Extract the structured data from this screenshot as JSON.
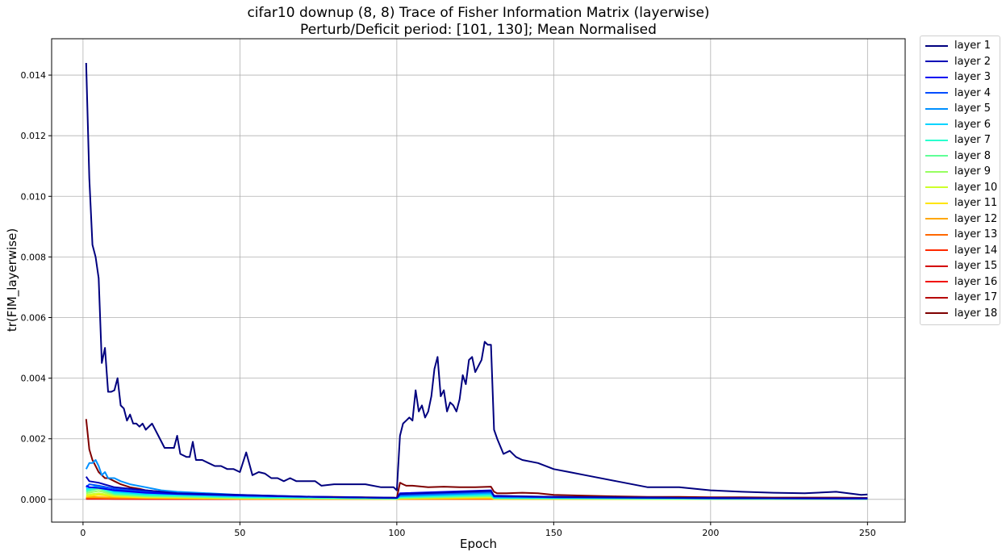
{
  "chart_data": {
    "type": "line",
    "title": "cifar10 downup (8, 8) Trace of Fisher Information Matrix (layerwise)",
    "subtitle": "Perturb/Deficit period: [101, 130]; Mean Normalised",
    "xlabel": "Epoch",
    "ylabel": "tr(FIM_layerwise)",
    "xlim": [
      -10,
      262
    ],
    "ylim": [
      -0.00075,
      0.0152
    ],
    "xticks": [
      0,
      50,
      100,
      150,
      200,
      250
    ],
    "xtick_labels": [
      "0",
      "50",
      "100",
      "150",
      "200",
      "250"
    ],
    "yticks": [
      0.0,
      0.002,
      0.004,
      0.006,
      0.008,
      0.01,
      0.012,
      0.014
    ],
    "ytick_labels": [
      "0.000",
      "0.002",
      "0.004",
      "0.006",
      "0.008",
      "0.010",
      "0.012",
      "0.014"
    ],
    "grid": true,
    "legend_position": "outside-right",
    "series": [
      {
        "name": "layer 1",
        "color": "#00007f",
        "x": [
          1,
          2,
          3,
          4,
          5,
          6,
          7,
          8,
          9,
          10,
          11,
          12,
          13,
          14,
          15,
          16,
          17,
          18,
          19,
          20,
          22,
          24,
          26,
          28,
          29,
          30,
          31,
          33,
          34,
          35,
          36,
          38,
          40,
          42,
          44,
          46,
          48,
          50,
          52,
          54,
          56,
          58,
          60,
          62,
          64,
          66,
          68,
          70,
          72,
          74,
          76,
          80,
          85,
          90,
          95,
          99,
          100,
          101,
          102,
          103,
          104,
          105,
          106,
          107,
          108,
          109,
          110,
          111,
          112,
          113,
          114,
          115,
          116,
          117,
          118,
          119,
          120,
          121,
          122,
          123,
          124,
          125,
          126,
          127,
          128,
          129,
          130,
          131,
          132,
          134,
          136,
          138,
          140,
          145,
          150,
          155,
          160,
          170,
          180,
          190,
          200,
          210,
          220,
          230,
          240,
          248,
          250
        ],
        "y": [
          0.0144,
          0.0106,
          0.0084,
          0.008,
          0.0073,
          0.0045,
          0.005,
          0.00355,
          0.00355,
          0.0036,
          0.004,
          0.0031,
          0.003,
          0.0026,
          0.0028,
          0.0025,
          0.0025,
          0.0024,
          0.0025,
          0.0023,
          0.0025,
          0.0021,
          0.0017,
          0.0017,
          0.0017,
          0.0021,
          0.0015,
          0.0014,
          0.0014,
          0.0019,
          0.0013,
          0.0013,
          0.0012,
          0.0011,
          0.0011,
          0.001,
          0.001,
          0.0009,
          0.00155,
          0.0008,
          0.0009,
          0.00085,
          0.0007,
          0.0007,
          0.0006,
          0.0007,
          0.0006,
          0.0006,
          0.0006,
          0.0006,
          0.00045,
          0.0005,
          0.0005,
          0.0005,
          0.0004,
          0.0004,
          0.0003,
          0.0021,
          0.0025,
          0.0026,
          0.0027,
          0.0026,
          0.0036,
          0.0029,
          0.0031,
          0.0027,
          0.0029,
          0.0034,
          0.0043,
          0.0047,
          0.0034,
          0.0036,
          0.0029,
          0.0032,
          0.0031,
          0.0029,
          0.0033,
          0.0041,
          0.0038,
          0.0046,
          0.0047,
          0.0042,
          0.0044,
          0.0046,
          0.0052,
          0.0051,
          0.0051,
          0.0023,
          0.002,
          0.0015,
          0.0016,
          0.0014,
          0.0013,
          0.0012,
          0.001,
          0.0009,
          0.0008,
          0.0006,
          0.0004,
          0.0004,
          0.0003,
          0.00025,
          0.00022,
          0.0002,
          0.00025,
          0.00015,
          0.00016
        ]
      },
      {
        "name": "layer 2",
        "color": "#0000b6",
        "x": [
          1,
          2,
          5,
          10,
          20,
          30,
          50,
          75,
          100,
          101,
          130,
          131,
          150,
          200,
          250
        ],
        "y": [
          0.00075,
          0.0006,
          0.00055,
          0.0004,
          0.0003,
          0.0002,
          0.00015,
          8e-05,
          5e-05,
          0.00018,
          0.00028,
          0.00012,
          8e-05,
          4e-05,
          3e-05
        ]
      },
      {
        "name": "layer 3",
        "color": "#0000f1",
        "x": [
          1,
          2,
          5,
          10,
          20,
          30,
          50,
          75,
          100,
          101,
          130,
          131,
          150,
          200,
          250
        ],
        "y": [
          0.00045,
          0.0004,
          0.00038,
          0.0003,
          0.00022,
          0.00018,
          0.00013,
          8e-05,
          5e-05,
          0.0002,
          0.0003,
          0.0001,
          8e-05,
          4e-05,
          3e-05
        ]
      },
      {
        "name": "layer 4",
        "color": "#004dff",
        "x": [
          1,
          2,
          5,
          10,
          20,
          30,
          50,
          75,
          100,
          101,
          130,
          131,
          150,
          200,
          250
        ],
        "y": [
          0.0004,
          0.0005,
          0.00045,
          0.00035,
          0.00025,
          0.0002,
          0.00013,
          8e-05,
          5e-05,
          0.00015,
          0.00025,
          0.0001,
          7e-05,
          4e-05,
          3e-05
        ]
      },
      {
        "name": "layer 5",
        "color": "#0090ff",
        "x": [
          1,
          2,
          3,
          4,
          5,
          6,
          7,
          8,
          10,
          12,
          15,
          20,
          25,
          30,
          40,
          50,
          75,
          100,
          101,
          130,
          131,
          150,
          200,
          250
        ],
        "y": [
          0.001,
          0.0012,
          0.0012,
          0.0013,
          0.0011,
          0.0008,
          0.0009,
          0.0007,
          0.0007,
          0.0006,
          0.0005,
          0.0004,
          0.0003,
          0.00025,
          0.0002,
          0.00015,
          8e-05,
          5e-05,
          0.00012,
          0.00022,
          0.0001,
          7e-05,
          4e-05,
          3e-05
        ]
      },
      {
        "name": "layer 6",
        "color": "#00d4ff",
        "x": [
          1,
          5,
          10,
          20,
          50,
          100,
          101,
          130,
          131,
          200,
          250
        ],
        "y": [
          0.00035,
          0.00045,
          0.00025,
          0.00018,
          0.0001,
          4e-05,
          0.0001,
          0.00018,
          6e-05,
          3e-05,
          2e-05
        ]
      },
      {
        "name": "layer 7",
        "color": "#29ffce",
        "x": [
          1,
          5,
          10,
          20,
          50,
          100,
          101,
          130,
          131,
          200,
          250
        ],
        "y": [
          0.0003,
          0.0004,
          0.0002,
          0.00015,
          8e-05,
          3e-05,
          8e-05,
          0.00015,
          5e-05,
          2e-05,
          2e-05
        ]
      },
      {
        "name": "layer 8",
        "color": "#60ff97",
        "x": [
          1,
          5,
          10,
          20,
          50,
          100,
          101,
          130,
          131,
          200,
          250
        ],
        "y": [
          0.00025,
          0.00035,
          0.00018,
          0.00012,
          6e-05,
          3e-05,
          6e-05,
          0.00012,
          4e-05,
          2e-05,
          2e-05
        ]
      },
      {
        "name": "layer 9",
        "color": "#97ff60",
        "x": [
          1,
          5,
          10,
          20,
          50,
          100,
          101,
          130,
          131,
          200,
          250
        ],
        "y": [
          0.0002,
          0.00028,
          0.00015,
          0.0001,
          5e-05,
          2e-05,
          5e-05,
          0.0001,
          3e-05,
          2e-05,
          1e-05
        ]
      },
      {
        "name": "layer 10",
        "color": "#ceff29",
        "x": [
          1,
          5,
          10,
          20,
          50,
          100,
          101,
          130,
          131,
          200,
          250
        ],
        "y": [
          0.00015,
          0.0002,
          0.00012,
          8e-05,
          4e-05,
          2e-05,
          4e-05,
          8e-05,
          3e-05,
          1e-05,
          1e-05
        ]
      },
      {
        "name": "layer 11",
        "color": "#ffe500",
        "x": [
          1,
          5,
          10,
          20,
          50,
          100,
          101,
          130,
          131,
          200,
          250
        ],
        "y": [
          0.0001,
          0.00015,
          0.0001,
          6e-05,
          3e-05,
          2e-05,
          3e-05,
          6e-05,
          2e-05,
          1e-05,
          1e-05
        ]
      },
      {
        "name": "layer 12",
        "color": "#ffa700",
        "x": [
          1,
          10,
          50,
          100,
          101,
          130,
          131,
          250
        ],
        "y": [
          8e-05,
          6e-05,
          2e-05,
          1e-05,
          2e-05,
          4e-05,
          1e-05,
          1e-05
        ]
      },
      {
        "name": "layer 13",
        "color": "#ff6800",
        "x": [
          1,
          10,
          50,
          100,
          250
        ],
        "y": [
          5e-05,
          4e-05,
          2e-05,
          1e-05,
          1e-05
        ]
      },
      {
        "name": "layer 14",
        "color": "#ff2900",
        "x": [
          1,
          10,
          50,
          100,
          250
        ],
        "y": [
          4e-05,
          3e-05,
          2e-05,
          1e-05,
          1e-05
        ]
      },
      {
        "name": "layer 15",
        "color": "#d30000",
        "x": [
          1,
          10,
          50,
          100,
          250
        ],
        "y": [
          3e-05,
          2e-05,
          1e-05,
          1e-05,
          1e-05
        ]
      },
      {
        "name": "layer 16",
        "color": "#f10800",
        "x": [
          1,
          50,
          100,
          250
        ],
        "y": [
          2e-05,
          1e-05,
          1e-05,
          1e-05
        ]
      },
      {
        "name": "layer 17",
        "color": "#b60000",
        "x": [
          1,
          50,
          100,
          250
        ],
        "y": [
          2e-05,
          1e-05,
          1e-05,
          1e-05
        ]
      },
      {
        "name": "layer 18",
        "color": "#7f0000",
        "x": [
          1,
          2,
          3,
          4,
          5,
          6,
          7,
          8,
          9,
          10,
          12,
          15,
          18,
          20,
          25,
          30,
          35,
          40,
          50,
          60,
          70,
          80,
          90,
          99,
          100,
          101,
          102,
          103,
          105,
          110,
          115,
          120,
          125,
          130,
          131,
          132,
          135,
          140,
          145,
          150,
          160,
          170,
          180,
          190,
          200,
          210,
          220,
          230,
          240,
          250
        ],
        "y": [
          0.00265,
          0.00165,
          0.0013,
          0.0011,
          0.0009,
          0.0008,
          0.0007,
          0.0007,
          0.00065,
          0.0006,
          0.0005,
          0.0004,
          0.00035,
          0.0003,
          0.00025,
          0.0002,
          0.00018,
          0.00015,
          0.00013,
          0.0001,
          9e-05,
          8e-05,
          7e-05,
          6e-05,
          5e-05,
          0.00055,
          0.0005,
          0.00045,
          0.00045,
          0.0004,
          0.00042,
          0.0004,
          0.0004,
          0.00042,
          0.00025,
          0.0002,
          0.0002,
          0.00022,
          0.0002,
          0.00015,
          0.00012,
          0.0001,
          8e-05,
          8e-05,
          7e-05,
          7e-05,
          6e-05,
          6e-05,
          6e-05,
          5e-05
        ]
      }
    ]
  }
}
